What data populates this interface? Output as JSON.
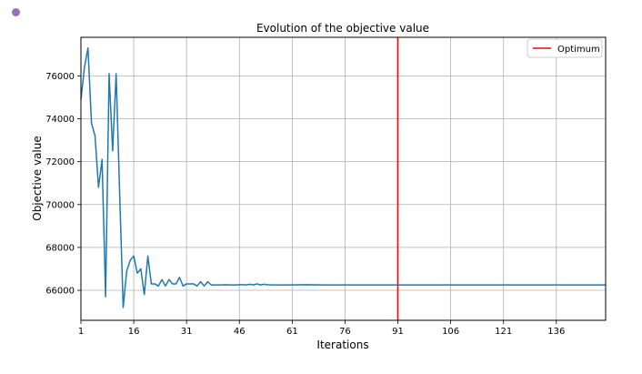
{
  "colors": {
    "dot": "#9b6fbe",
    "series": "#1f77b4",
    "optimum": "#ff0000",
    "grid": "#b0b0b0"
  },
  "chart_data": {
    "type": "line",
    "title": "Evolution of the objective value",
    "xlabel": "Iterations",
    "ylabel": "Objective value",
    "xlim": [
      1,
      150
    ],
    "ylim": [
      64600,
      77800
    ],
    "xticks": [
      1,
      16,
      31,
      46,
      61,
      76,
      91,
      106,
      121,
      136
    ],
    "yticks": [
      66000,
      68000,
      70000,
      72000,
      74000,
      76000
    ],
    "grid": true,
    "legend": {
      "position": "top-right",
      "entries": [
        "Optimum"
      ]
    },
    "optimum_x": 91,
    "series": [
      {
        "x": [
          1,
          2,
          3,
          4,
          5,
          6,
          7,
          8,
          9,
          10,
          11,
          12,
          13,
          14,
          15,
          16,
          17,
          18,
          19,
          20,
          21,
          22,
          23,
          24,
          25,
          26,
          27,
          28,
          29,
          30,
          31,
          32,
          33,
          34,
          35,
          36,
          37,
          38,
          39,
          40,
          41,
          42,
          43,
          44,
          45,
          46,
          47,
          48,
          49,
          50,
          51,
          52,
          53,
          54,
          55,
          56,
          57,
          58,
          59,
          60,
          65,
          70,
          75,
          80,
          90,
          100,
          110,
          120,
          130,
          140,
          150
        ],
        "y": [
          74900,
          76400,
          77300,
          73800,
          73200,
          70800,
          72100,
          65700,
          76100,
          72500,
          76100,
          70500,
          65200,
          66900,
          67400,
          67600,
          66800,
          67000,
          65800,
          67600,
          66300,
          66300,
          66200,
          66500,
          66200,
          66500,
          66300,
          66300,
          66600,
          66200,
          66300,
          66300,
          66300,
          66200,
          66400,
          66200,
          66400,
          66250,
          66250,
          66250,
          66250,
          66260,
          66250,
          66250,
          66250,
          66260,
          66260,
          66250,
          66280,
          66250,
          66300,
          66250,
          66280,
          66260,
          66250,
          66250,
          66250,
          66250,
          66250,
          66250,
          66260,
          66250,
          66250,
          66250,
          66250,
          66250,
          66250,
          66250,
          66250,
          66250,
          66250
        ]
      }
    ]
  }
}
